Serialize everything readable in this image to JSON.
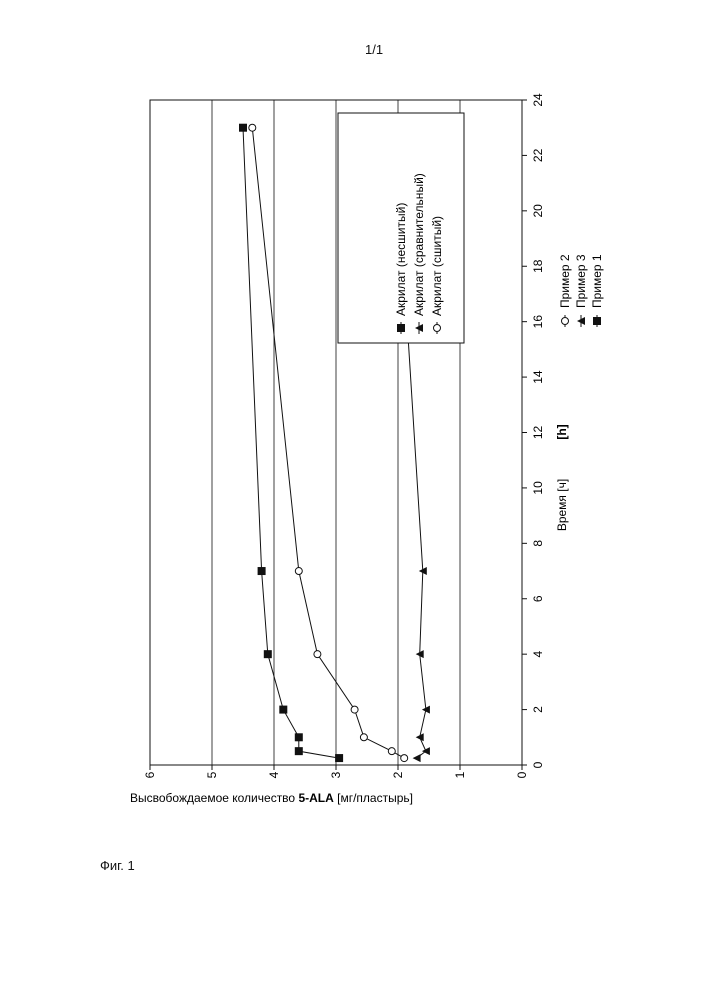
{
  "page_number": "1/1",
  "figure_caption": "Фиг. 1",
  "chart_data": {
    "type": "line",
    "orientation": "rotated-90",
    "xlabel": "Время [ч]",
    "xunit_extra": "[h]",
    "ylabel_prefix": "Высвобождаемое количество ",
    "ylabel_bold": "5-ALA",
    "ylabel_suffix": " [мг/пластырь]",
    "xlim": [
      0,
      24
    ],
    "ylim": [
      0,
      6
    ],
    "x_ticks": [
      "0",
      "2",
      "4",
      "6",
      "8",
      "10",
      "12",
      "14",
      "16",
      "18",
      "20",
      "22",
      "24"
    ],
    "y_ticks": [
      "0",
      "1",
      "2",
      "3",
      "4",
      "5",
      "6"
    ],
    "grid": "horizontal",
    "legend_placement": "upper-right",
    "series": [
      {
        "name": "Акрилат (сшитый)",
        "marker": "open-circle",
        "x": [
          0.25,
          0.5,
          1,
          2,
          4,
          7,
          23
        ],
        "y": [
          1.9,
          2.1,
          2.55,
          2.7,
          3.3,
          3.6,
          4.35
        ]
      },
      {
        "name": "Акрилат (сравнительный)",
        "marker": "filled-triangle",
        "x": [
          0.25,
          0.5,
          1,
          2,
          4,
          7,
          23
        ],
        "y": [
          1.7,
          1.55,
          1.65,
          1.55,
          1.65,
          1.6,
          2.05
        ]
      },
      {
        "name": "Акрилат (несшитый)",
        "marker": "filled-square",
        "x": [
          0.25,
          0.5,
          1,
          2,
          4,
          7,
          23
        ],
        "y": [
          2.95,
          3.6,
          3.6,
          3.85,
          4.1,
          4.2,
          4.5
        ]
      }
    ],
    "examples": [
      {
        "label": "Пример 2",
        "marker": "open-circle"
      },
      {
        "label": "Пример 3",
        "marker": "filled-triangle"
      },
      {
        "label": "Пример 1",
        "marker": "filled-square"
      }
    ]
  }
}
